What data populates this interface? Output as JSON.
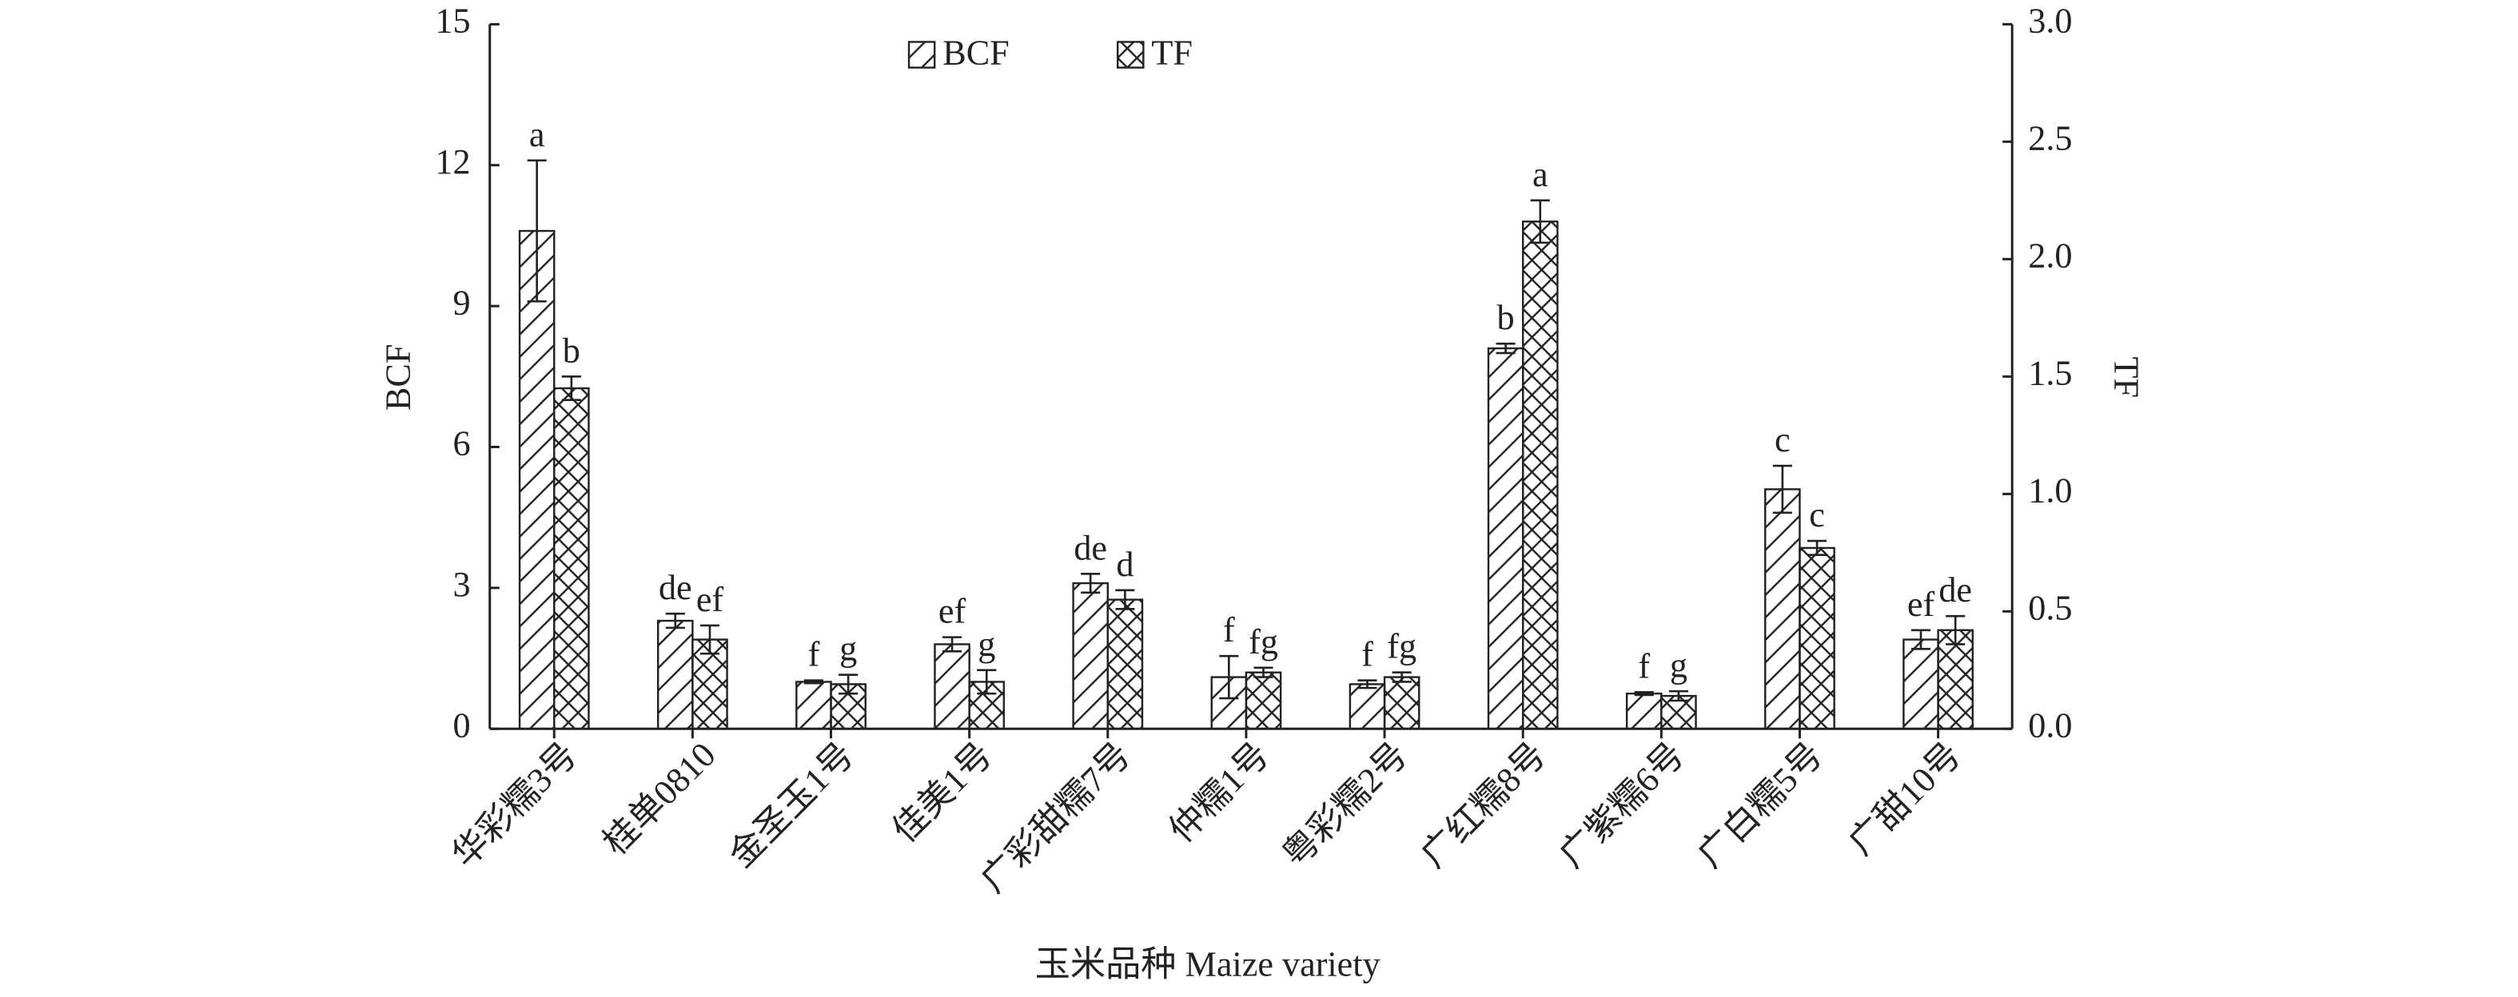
{
  "chart_data": {
    "type": "bar",
    "xlabel": "玉米品种 Maize variety",
    "ylabel": "BCF",
    "y2label": "TF",
    "categories": [
      "华彩糯3号",
      "桂单0810",
      "金圣玉1号",
      "佳美1号",
      "广彩甜糯7号",
      "仲糯1号",
      "粤彩糯2号",
      "广红糯8号",
      "广紫糯6号",
      "广白糯5号",
      "广甜10号"
    ],
    "series": [
      {
        "name": "BCF",
        "color": "#222222",
        "hatch": "diagonal",
        "values": [
          10.6,
          2.3,
          1.0,
          1.8,
          3.1,
          1.1,
          0.95,
          8.1,
          0.75,
          5.1,
          1.9
        ],
        "errors": [
          1.5,
          0.15,
          0.03,
          0.15,
          0.2,
          0.45,
          0.08,
          0.1,
          0.03,
          0.5,
          0.2
        ],
        "letters": [
          "a",
          "de",
          "f",
          "ef",
          "de",
          "f",
          "f",
          "b",
          "f",
          "c",
          "ef"
        ]
      },
      {
        "name": "TF",
        "color": "#222222",
        "hatch": "cross",
        "axis": "y2",
        "values": [
          1.45,
          0.38,
          0.19,
          0.2,
          0.55,
          0.24,
          0.22,
          2.16,
          0.14,
          0.77,
          0.42
        ],
        "errors": [
          0.05,
          0.06,
          0.04,
          0.05,
          0.04,
          0.02,
          0.02,
          0.09,
          0.02,
          0.03,
          0.06
        ],
        "letters": [
          "b",
          "ef",
          "g",
          "g",
          "d",
          "fg",
          "fg",
          "a",
          "g",
          "c",
          "de"
        ]
      }
    ],
    "ylim": [
      0,
      15
    ],
    "yticks": [
      0,
      3,
      6,
      9,
      12,
      15
    ],
    "y2lim": [
      0,
      3.0
    ],
    "y2ticks": [
      {
        "value": 0,
        "label": "0.0"
      },
      0.5,
      {
        "value": 1,
        "label": "1.0"
      },
      1.5,
      {
        "value": 2,
        "label": "2.0"
      },
      2.5,
      {
        "value": 3,
        "label": "3.0"
      }
    ],
    "grid": false
  }
}
